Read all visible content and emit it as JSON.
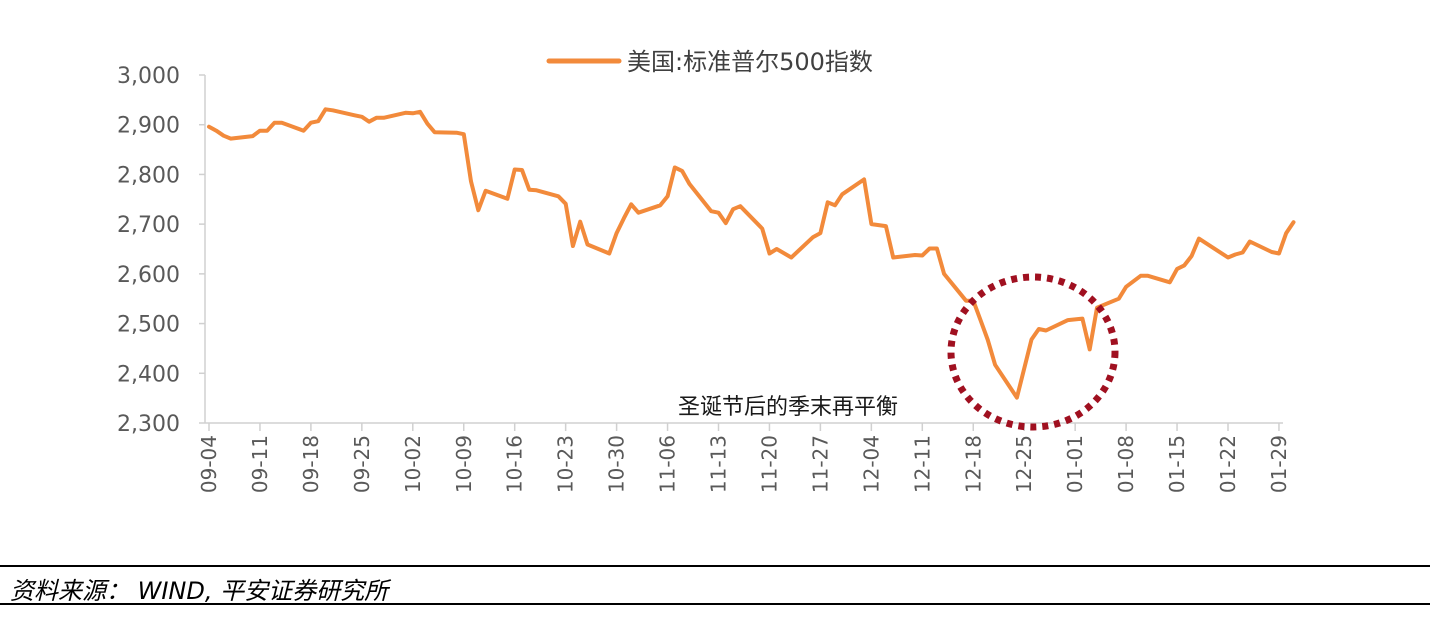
{
  "chart_data": {
    "type": "line",
    "legend": {
      "position": "top-center"
    },
    "grid": false,
    "ylim": [
      2300,
      3000
    ],
    "yticks": [
      2300,
      2400,
      2500,
      2600,
      2700,
      2800,
      2900,
      3000
    ],
    "ytick_labels": [
      "2,300",
      "2,400",
      "2,500",
      "2,600",
      "2,700",
      "2,800",
      "2,900",
      "3,000"
    ],
    "xtick_labels": [
      "09-04",
      "09-11",
      "09-18",
      "09-25",
      "10-02",
      "10-09",
      "10-16",
      "10-23",
      "10-30",
      "11-06",
      "11-13",
      "11-20",
      "11-27",
      "12-04",
      "12-11",
      "12-18",
      "12-25",
      "01-01",
      "01-08",
      "01-15",
      "01-22",
      "01-29"
    ],
    "series": [
      {
        "name": "美国:标准普尔500指数",
        "color": "#F28A3B",
        "points": [
          [
            "09-04",
            2896
          ],
          [
            "09-05",
            2888
          ],
          [
            "09-06",
            2878
          ],
          [
            "09-07",
            2872
          ],
          [
            "09-10",
            2877
          ],
          [
            "09-11",
            2888
          ],
          [
            "09-12",
            2888
          ],
          [
            "09-13",
            2904
          ],
          [
            "09-14",
            2904
          ],
          [
            "09-17",
            2888
          ],
          [
            "09-18",
            2904
          ],
          [
            "09-19",
            2907
          ],
          [
            "09-20",
            2931
          ],
          [
            "09-21",
            2929
          ],
          [
            "09-24",
            2919
          ],
          [
            "09-25",
            2916
          ],
          [
            "09-26",
            2906
          ],
          [
            "09-27",
            2914
          ],
          [
            "09-28",
            2914
          ],
          [
            "10-01",
            2924
          ],
          [
            "10-02",
            2923
          ],
          [
            "10-03",
            2926
          ],
          [
            "10-04",
            2902
          ],
          [
            "10-05",
            2885
          ],
          [
            "10-08",
            2884
          ],
          [
            "10-09",
            2881
          ],
          [
            "10-10",
            2786
          ],
          [
            "10-11",
            2728
          ],
          [
            "10-12",
            2767
          ],
          [
            "10-15",
            2751
          ],
          [
            "10-16",
            2810
          ],
          [
            "10-17",
            2809
          ],
          [
            "10-18",
            2769
          ],
          [
            "10-19",
            2768
          ],
          [
            "10-22",
            2756
          ],
          [
            "10-23",
            2741
          ],
          [
            "10-24",
            2656
          ],
          [
            "10-25",
            2705
          ],
          [
            "10-26",
            2659
          ],
          [
            "10-29",
            2641
          ],
          [
            "10-30",
            2682
          ],
          [
            "10-31",
            2712
          ],
          [
            "11-01",
            2740
          ],
          [
            "11-02",
            2723
          ],
          [
            "11-05",
            2738
          ],
          [
            "11-06",
            2756
          ],
          [
            "11-07",
            2814
          ],
          [
            "11-08",
            2807
          ],
          [
            "11-09",
            2781
          ],
          [
            "11-12",
            2726
          ],
          [
            "11-13",
            2723
          ],
          [
            "11-14",
            2702
          ],
          [
            "11-15",
            2730
          ],
          [
            "11-16",
            2736
          ],
          [
            "11-19",
            2691
          ],
          [
            "11-20",
            2641
          ],
          [
            "11-21",
            2650
          ],
          [
            "11-23",
            2633
          ],
          [
            "11-26",
            2674
          ],
          [
            "11-27",
            2682
          ],
          [
            "11-28",
            2744
          ],
          [
            "11-29",
            2738
          ],
          [
            "11-30",
            2760
          ],
          [
            "12-03",
            2790
          ],
          [
            "12-04",
            2700
          ],
          [
            "12-06",
            2696
          ],
          [
            "12-07",
            2633
          ],
          [
            "12-10",
            2638
          ],
          [
            "12-11",
            2637
          ],
          [
            "12-12",
            2651
          ],
          [
            "12-13",
            2651
          ],
          [
            "12-14",
            2600
          ],
          [
            "12-17",
            2546
          ],
          [
            "12-18",
            2546
          ],
          [
            "12-19",
            2507
          ],
          [
            "12-20",
            2467
          ],
          [
            "12-21",
            2417
          ],
          [
            "12-24",
            2351
          ],
          [
            "12-26",
            2468
          ],
          [
            "12-27",
            2489
          ],
          [
            "12-28",
            2486
          ],
          [
            "12-31",
            2507
          ],
          [
            "01-02",
            2510
          ],
          [
            "01-03",
            2448
          ],
          [
            "01-04",
            2532
          ],
          [
            "01-07",
            2550
          ],
          [
            "01-08",
            2574
          ],
          [
            "01-09",
            2585
          ],
          [
            "01-10",
            2596
          ],
          [
            "01-11",
            2596
          ],
          [
            "01-14",
            2583
          ],
          [
            "01-15",
            2610
          ],
          [
            "01-16",
            2617
          ],
          [
            "01-17",
            2636
          ],
          [
            "01-18",
            2671
          ],
          [
            "01-22",
            2633
          ],
          [
            "01-23",
            2639
          ],
          [
            "01-24",
            2643
          ],
          [
            "01-25",
            2665
          ],
          [
            "01-28",
            2644
          ],
          [
            "01-29",
            2641
          ],
          [
            "01-30",
            2682
          ],
          [
            "01-31",
            2704
          ]
        ]
      }
    ],
    "annotations": [
      {
        "text": "圣诞节后的季末再平衡",
        "type": "dotted-circle",
        "color": "#A01020"
      }
    ]
  },
  "source": {
    "text": "资料来源： WIND, 平安证券研究所"
  }
}
